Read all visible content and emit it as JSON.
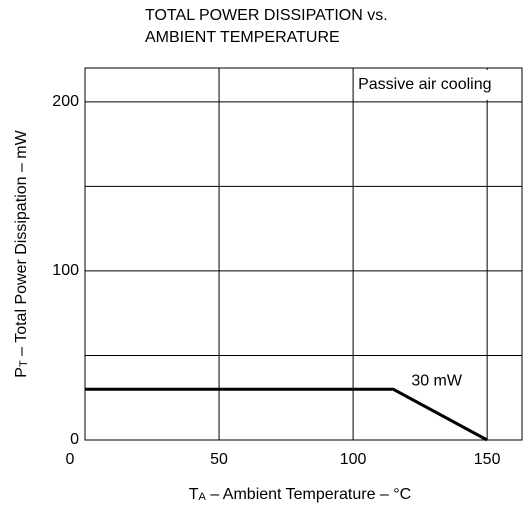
{
  "chart_data": {
    "type": "line",
    "title": [
      "TOTAL POWER DISSIPATION vs.",
      "AMBIENT TEMPERATURE"
    ],
    "x_label": {
      "main": "T",
      "sub": "A",
      "rest": " – Ambient Temperature – °C"
    },
    "y_label": {
      "main": "P",
      "sub": "T",
      "rest": " – Total Power Dissipation – mW"
    },
    "x": [
      0,
      115,
      150
    ],
    "series": [
      {
        "name": "30 mW",
        "color": "#000000",
        "values": [
          30,
          30,
          0
        ]
      }
    ],
    "annotations": [
      "Passive air cooling"
    ],
    "xlim": [
      0,
      163
    ],
    "ylim": [
      0,
      220
    ],
    "xticks": [
      0,
      50,
      100,
      150
    ],
    "yticks": [
      0,
      100,
      200
    ],
    "yminor": [
      50,
      150
    ],
    "grid": true
  }
}
